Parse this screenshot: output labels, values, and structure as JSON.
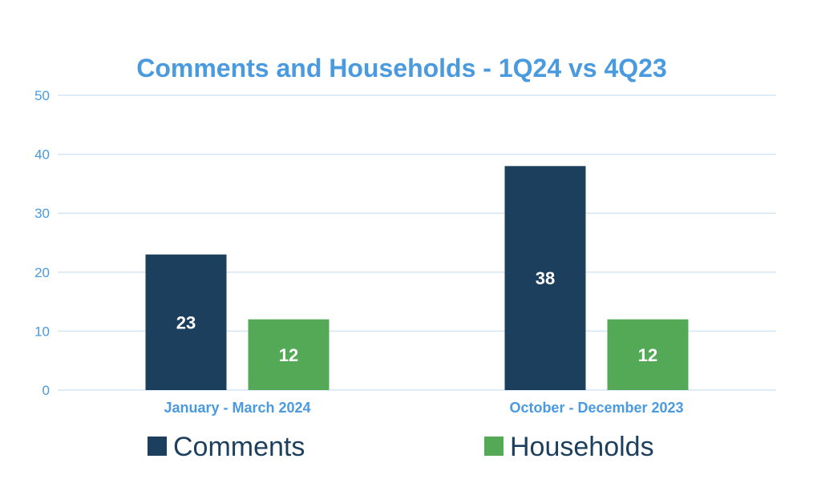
{
  "chart_data": {
    "type": "bar",
    "title": "Comments and Households - 1Q24 vs 4Q23",
    "categories": [
      "January - March 2024",
      "October - December 2023"
    ],
    "series": [
      {
        "name": "Comments",
        "values": [
          23,
          38
        ],
        "color": "#1d3f5e"
      },
      {
        "name": "Households",
        "values": [
          12,
          12
        ],
        "color": "#54a957"
      }
    ],
    "ylim": [
      0,
      50
    ],
    "yticks": [
      0,
      10,
      20,
      30,
      40,
      50
    ],
    "grid": true,
    "legend": "bottom",
    "accent_color": "#4a9ae0",
    "grid_color": "#d4e6f5",
    "label_color": "#ffffff",
    "legend_text_color": "#1d3f5e"
  }
}
